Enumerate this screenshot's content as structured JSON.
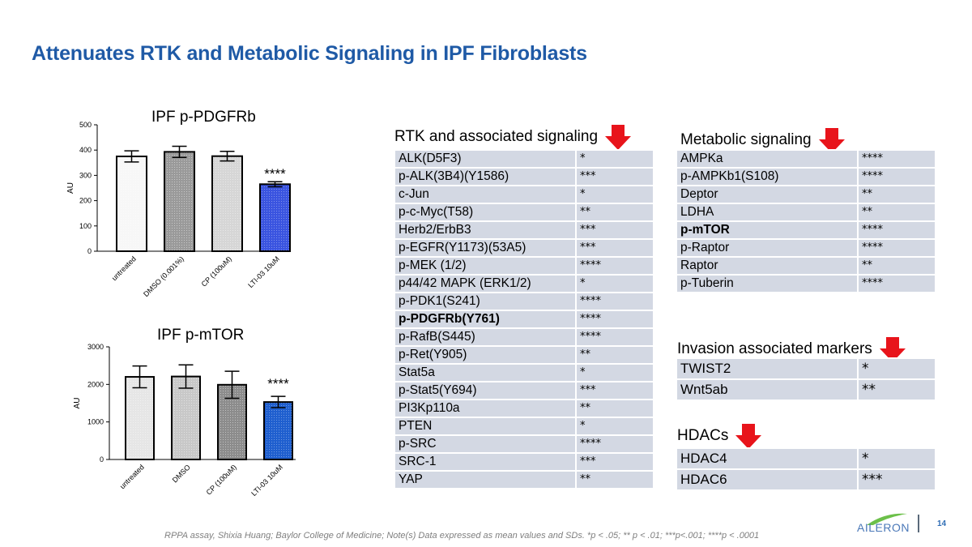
{
  "slide": {
    "title": "Attenuates RTK and Metabolic Signaling in IPF Fibroblasts",
    "footer": "RPPA assay, Shixia Huang; Baylor College of Medicine; Note(s) Data expressed as mean values and SDs. *p < .05; ** p < .01; ***p<.001; ****p < .0001",
    "logo_text": "AILERON",
    "page_number": "14",
    "colors": {
      "title": "#1f5aa6",
      "arrow": "#e8141b",
      "table_cell": "#d3d8e3",
      "highlight_bar": "#2a4fe0"
    }
  },
  "chart_data": [
    {
      "type": "bar",
      "title": "IPF p-PDGFRb",
      "xlabel": "",
      "ylabel": "AU",
      "ylim": [
        0,
        500
      ],
      "yticks": [
        0,
        100,
        200,
        300,
        400,
        500
      ],
      "categories": [
        "untreated",
        "DMSO (0.001%)",
        "CP (100uM)",
        "LTI-03 10uM"
      ],
      "values": [
        375,
        393,
        376,
        265
      ],
      "error_sd": [
        22,
        22,
        19,
        10
      ],
      "annotations": [
        {
          "category": "LTI-03 10uM",
          "text": "****"
        }
      ],
      "grid": false,
      "legend": "none"
    },
    {
      "type": "bar",
      "title": "IPF p-mTOR",
      "xlabel": "",
      "ylabel": "AU",
      "ylim": [
        0,
        3000
      ],
      "yticks": [
        0,
        1000,
        2000,
        3000
      ],
      "categories": [
        "untreated",
        "DMSO",
        "CP (100uM)",
        "LTI-03 10uM"
      ],
      "values": [
        2200,
        2210,
        1990,
        1530
      ],
      "error_sd": [
        290,
        310,
        360,
        150
      ],
      "annotations": [
        {
          "category": "LTI-03 10uM",
          "text": "****"
        }
      ],
      "grid": false,
      "legend": "none"
    }
  ],
  "rtk": {
    "heading": "RTK and associated signaling",
    "rows": [
      {
        "name": "ALK(D5F3)",
        "sig": "*"
      },
      {
        "name": "p-ALK(3B4)(Y1586)",
        "sig": "***"
      },
      {
        "name": "c-Jun",
        "sig": "*"
      },
      {
        "name": "p-c-Myc(T58)",
        "sig": "**"
      },
      {
        "name": "Herb2/ErbB3",
        "sig": "***"
      },
      {
        "name": "p-EGFR(Y1173)(53A5)",
        "sig": "***"
      },
      {
        "name": "p-MEK (1/2)",
        "sig": "****"
      },
      {
        "name": "p44/42 MAPK (ERK1/2)",
        "sig": "*"
      },
      {
        "name": "p-PDK1(S241)",
        "sig": "****"
      },
      {
        "name": "p-PDGFRb(Y761)",
        "sig": "****",
        "bold": true
      },
      {
        "name": "p-RafB(S445)",
        "sig": "****"
      },
      {
        "name": "p-Ret(Y905)",
        "sig": "**"
      },
      {
        "name": "Stat5a",
        "sig": "*"
      },
      {
        "name": "p-Stat5(Y694)",
        "sig": "***"
      },
      {
        "name": "PI3Kp110a",
        "sig": "**"
      },
      {
        "name": "PTEN",
        "sig": "*"
      },
      {
        "name": "p-SRC",
        "sig": "****"
      },
      {
        "name": "SRC-1",
        "sig": "***"
      },
      {
        "name": "YAP",
        "sig": "**"
      }
    ]
  },
  "metabolic": {
    "heading": "Metabolic signaling",
    "rows": [
      {
        "name": "AMPKa",
        "sig": "****"
      },
      {
        "name": "p-AMPKb1(S108)",
        "sig": "****"
      },
      {
        "name": "Deptor",
        "sig": "**"
      },
      {
        "name": "LDHA",
        "sig": "**"
      },
      {
        "name": "p-mTOR",
        "sig": "****",
        "bold": true
      },
      {
        "name": "p-Raptor",
        "sig": "****"
      },
      {
        "name": "Raptor",
        "sig": "**"
      },
      {
        "name": "p-Tuberin",
        "sig": "****"
      }
    ]
  },
  "invasion": {
    "heading": "Invasion associated markers",
    "rows": [
      {
        "name": "TWIST2",
        "sig": "*"
      },
      {
        "name": "Wnt5ab",
        "sig": "**"
      }
    ]
  },
  "hdacs": {
    "heading": "HDACs",
    "rows": [
      {
        "name": "HDAC4",
        "sig": "*"
      },
      {
        "name": "HDAC6",
        "sig": "***"
      }
    ]
  }
}
